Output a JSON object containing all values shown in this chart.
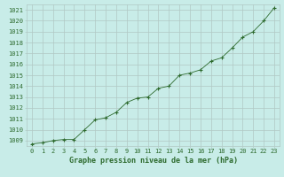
{
  "x": [
    0,
    1,
    2,
    3,
    4,
    5,
    6,
    7,
    8,
    9,
    10,
    11,
    12,
    13,
    14,
    15,
    16,
    17,
    18,
    19,
    20,
    21,
    22,
    23
  ],
  "y": [
    1008.7,
    1008.8,
    1009.0,
    1009.1,
    1009.1,
    1010.0,
    1010.9,
    1011.1,
    1011.6,
    1012.5,
    1012.9,
    1013.0,
    1013.8,
    1014.0,
    1015.0,
    1015.2,
    1015.5,
    1016.3,
    1016.6,
    1017.5,
    1018.5,
    1019.0,
    1020.0,
    1021.2
  ],
  "line_color": "#2d6a2d",
  "marker": "+",
  "bg_color": "#c8ece8",
  "grid_color": "#b0c8c4",
  "ylabel_ticks": [
    1009,
    1010,
    1011,
    1012,
    1013,
    1014,
    1015,
    1016,
    1017,
    1018,
    1019,
    1020,
    1021
  ],
  "xlabel": "Graphe pression niveau de la mer (hPa)",
  "xlim": [
    -0.5,
    23.5
  ],
  "ylim": [
    1008.5,
    1021.5
  ],
  "tick_label_color": "#2d6a2d",
  "xlabel_color": "#2d6a2d",
  "font": "monospace",
  "tick_fontsize": 5.0,
  "xlabel_fontsize": 6.0
}
